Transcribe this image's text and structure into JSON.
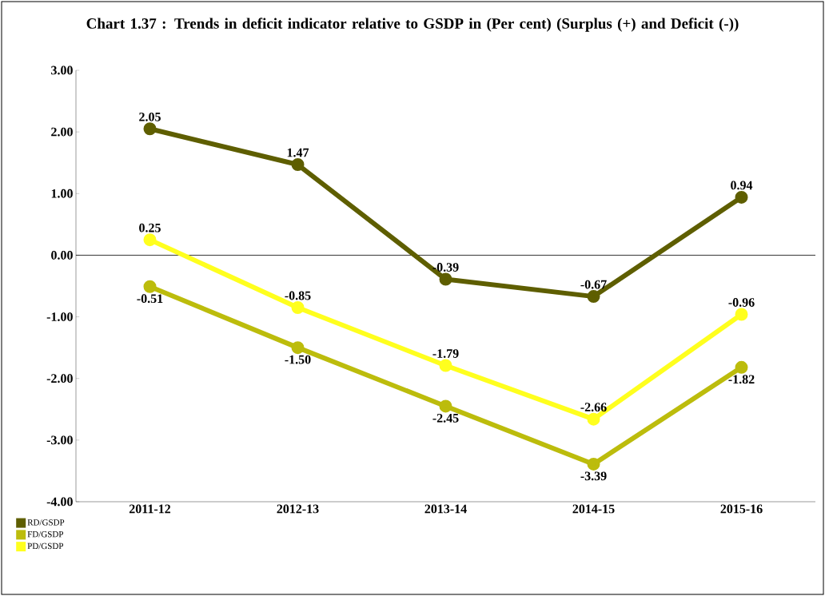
{
  "chart_data": {
    "type": "line",
    "title": "Chart 1.37 : Trends in deficit indicator relative to GSDP in (Per cent) (Surplus (+) and Deficit (-))",
    "categories": [
      "2011-12",
      "2012-13",
      "2013-14",
      "2014-15",
      "2015-16"
    ],
    "series": [
      {
        "name": "RD/GSDP",
        "color": "#5e5e00",
        "values": [
          2.05,
          1.47,
          -0.39,
          -0.67,
          0.94
        ],
        "value_labels": [
          "2.05",
          "1.47",
          "-0.39",
          "-0.67",
          "0.94"
        ]
      },
      {
        "name": "FD/GSDP",
        "color": "#bcbc0c",
        "values": [
          -0.51,
          -1.5,
          -2.45,
          -3.39,
          -1.82
        ],
        "value_labels": [
          "-0.51",
          "-1.50",
          "-2.45",
          "-3.39",
          "-1.82"
        ]
      },
      {
        "name": "PD/GSDP",
        "color": "#ffff1e",
        "values": [
          0.25,
          -0.85,
          -1.79,
          -2.66,
          -0.96
        ],
        "value_labels": [
          "0.25",
          "-0.85",
          "-1.79",
          "-2.66",
          "-0.96"
        ]
      }
    ],
    "ylim": [
      -4,
      3
    ],
    "yticks": [
      {
        "value": -4,
        "label": "-4.00"
      },
      {
        "value": -3,
        "label": "-3.00"
      },
      {
        "value": -2,
        "label": "-2.00"
      },
      {
        "value": -1,
        "label": "-1.00"
      },
      {
        "value": 0,
        "label": "0.00"
      },
      {
        "value": 1,
        "label": "1.00"
      },
      {
        "value": 2,
        "label": "2.00"
      },
      {
        "value": 3,
        "label": "3.00"
      }
    ],
    "ref_lines": [
      {
        "axis": "y",
        "value": 0
      }
    ],
    "grid": false,
    "legend": "bottom left",
    "marker": "circle",
    "line_style": "solid"
  }
}
